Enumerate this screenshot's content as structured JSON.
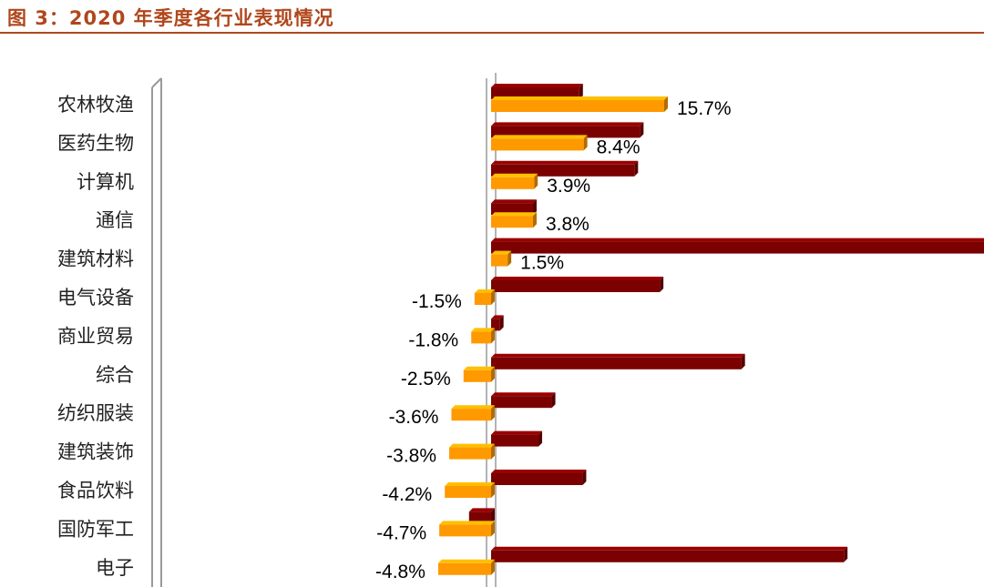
{
  "header": {
    "title": "图 3：2020 年季度各行业表现情况"
  },
  "colors": {
    "title": "#b0471c",
    "series_dark": "#7b0000",
    "series_orange": "#ff9900"
  },
  "chart_data": {
    "type": "bar",
    "orientation": "horizontal",
    "three_d": true,
    "categories": [
      "农林牧渔",
      "医药生物",
      "计算机",
      "通信",
      "建筑材料",
      "电气设备",
      "商业贸易",
      "综合",
      "纺织服装",
      "建筑装饰",
      "食品饮料",
      "国防军工",
      "电子"
    ],
    "series": [
      {
        "color": "#7b0000",
        "values": [
          8.0,
          13.5,
          13.0,
          3.8,
          48.0,
          15.3,
          0.8,
          22.7,
          5.5,
          4.3,
          8.3,
          -2.0,
          32.0
        ],
        "labels_shown": false
      },
      {
        "color": "#ff9900",
        "values": [
          15.7,
          8.4,
          3.9,
          3.8,
          1.5,
          -1.5,
          -1.8,
          -2.5,
          -3.6,
          -3.8,
          -4.2,
          -4.7,
          -4.8
        ],
        "labels": [
          "15.7%",
          "8.4%",
          "3.9%",
          "3.8%",
          "1.5%",
          "-1.5%",
          "-1.8%",
          "-2.5%",
          "-3.6%",
          "-3.8%",
          "-4.2%",
          "-4.7%",
          "-4.8%"
        ]
      }
    ],
    "xaxis_shown": false,
    "grid": false,
    "legend": "none"
  }
}
